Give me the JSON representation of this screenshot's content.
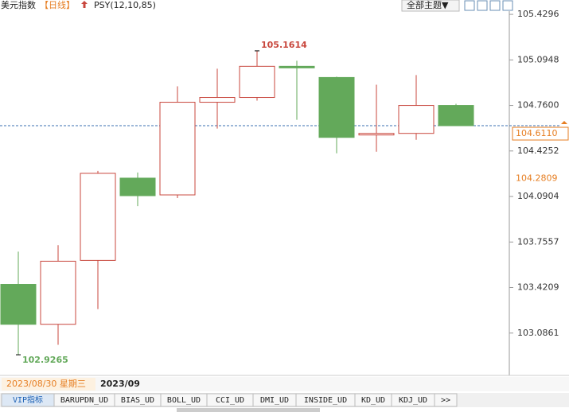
{
  "header": {
    "title": "美元指数",
    "period": "【日线】",
    "indicator": "PSY(12,10,85)",
    "theme_menu": "全部主题▼"
  },
  "chart_data": {
    "type": "candlestick",
    "categories": [
      null,
      null,
      null,
      null,
      null,
      null,
      null,
      null,
      null,
      null,
      null,
      null
    ],
    "open": [
      103.4443,
      103.1506,
      103.6205,
      104.2255,
      104.1022,
      104.7835,
      104.8187,
      105.0478,
      104.9656,
      104.5427,
      104.5544,
      104.76
    ],
    "high": [
      103.6851,
      103.7321,
      104.2784,
      104.2666,
      104.901,
      105.0302,
      105.1614,
      105.0889,
      104.9715,
      104.9127,
      104.9832,
      104.7717
    ],
    "low": [
      102.9265,
      103.0,
      103.2622,
      104.0199,
      104.0787,
      104.5897,
      104.7952,
      104.6543,
      104.4076,
      104.4193,
      104.5074,
      104.611
    ],
    "close": [
      103.1506,
      103.6146,
      104.2607,
      104.0963,
      104.7835,
      104.8187,
      105.0478,
      105.0361,
      104.525,
      104.5544,
      104.76,
      104.611
    ],
    "up_color": "#c8473d",
    "down_color": "#63a95a",
    "ylim": [
      102.7747,
      105.5353
    ],
    "yticks": [
      105.4296,
      105.0948,
      {
        "value": 104.76,
        "label": "104.7600"
      },
      104.4252,
      104.0904,
      103.7557,
      103.4209,
      103.0861
    ],
    "last_price": {
      "value": 104.611,
      "label": "104.6110"
    },
    "marker_price": {
      "value": 104.2809,
      "label": "104.2809"
    },
    "x_labels": [
      "2023/08/30 星期三",
      "2023/09"
    ]
  },
  "tabs": [
    "VIP指标",
    "BARUPDN_UD",
    "BIAS_UD",
    "BOLL_UD",
    "CCI_UD",
    "DMI_UD",
    "INSIDE_UD",
    "KD_UD",
    "KDJ_UD",
    ">>"
  ]
}
